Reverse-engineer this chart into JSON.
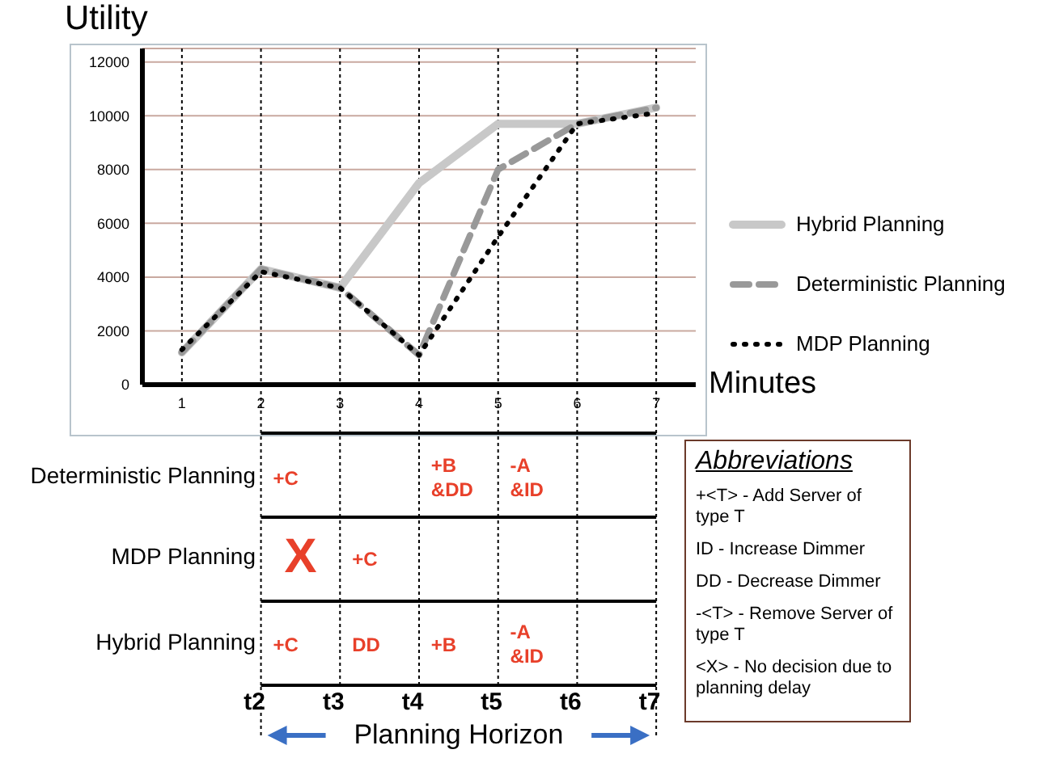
{
  "chart_data": {
    "type": "line",
    "xlabel": "Minutes",
    "ylabel": "Utility",
    "x": [
      1,
      2,
      3,
      4,
      5,
      6,
      7
    ],
    "xlim": [
      0.5,
      7.5
    ],
    "xticks": [
      1,
      2,
      3,
      4,
      5,
      6,
      7
    ],
    "ylim": [
      0,
      12500
    ],
    "yticks": [
      0,
      2000,
      4000,
      6000,
      8000,
      10000,
      12000
    ],
    "grid": true,
    "legend": "right",
    "marker": "none",
    "series": [
      {
        "name": "Hybrid Planning",
        "color": "#c8c8c8",
        "line_style": "solid",
        "values": [
          1200,
          4300,
          3600,
          7500,
          9700,
          9700,
          10300
        ]
      },
      {
        "name": "Deterministic Planning",
        "color": "#999999",
        "line_style": "dashed",
        "values": [
          1200,
          4300,
          3600,
          1100,
          8000,
          9700,
          10300
        ]
      },
      {
        "name": "MDP Planning",
        "color": "#000000",
        "line_style": "dotted",
        "values": [
          1300,
          4200,
          3600,
          1100,
          5500,
          9700,
          10100
        ]
      }
    ],
    "annotations": [
      "Deterministic Planning",
      "MDP Planning",
      "Hybrid Planning",
      "+C",
      "+B &DD",
      "-A &ID",
      "X",
      "+C",
      "+C",
      "DD",
      "+B",
      "-A &ID",
      "t2",
      "t3",
      "t4",
      "t5",
      "t6",
      "t7",
      "Planning Horizon",
      "Abbreviations",
      "+<T> - Add Server of type T",
      "ID -  Increase Dimmer",
      "DD - Decrease Dimmer",
      "-<T> - Remove Server of type T",
      "<X> - No decision due to planning delay"
    ]
  }
}
